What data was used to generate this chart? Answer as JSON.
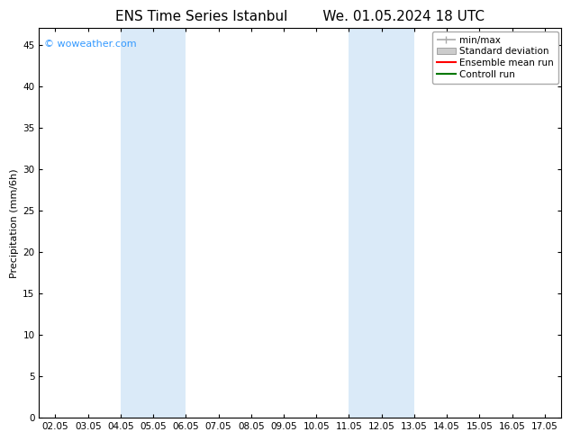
{
  "title_left": "ENS Time Series Istanbul",
  "title_right": "We. 01.05.2024 18 UTC",
  "ylabel": "Precipitation (mm/6h)",
  "ylim": [
    0,
    47
  ],
  "yticks": [
    0,
    5,
    10,
    15,
    20,
    25,
    30,
    35,
    40,
    45
  ],
  "xtick_labels": [
    "02.05",
    "03.05",
    "04.05",
    "05.05",
    "06.05",
    "07.05",
    "08.05",
    "09.05",
    "10.05",
    "11.05",
    "12.05",
    "13.05",
    "14.05",
    "15.05",
    "16.05",
    "17.05"
  ],
  "shaded_regions": [
    {
      "x0_label": "04.05",
      "x1_label": "06.05"
    },
    {
      "x0_label": "11.05",
      "x1_label": "13.05"
    }
  ],
  "shade_color": "#daeaf8",
  "watermark": "© woweather.com",
  "watermark_color": "#3399ff",
  "legend_items": [
    {
      "label": "min/max",
      "color": "#aaaaaa",
      "lw": 1.2
    },
    {
      "label": "Standard deviation",
      "color": "#cccccc",
      "lw": 6
    },
    {
      "label": "Ensemble mean run",
      "color": "#ff0000",
      "lw": 1.5
    },
    {
      "label": "Controll run",
      "color": "#007700",
      "lw": 1.5
    }
  ],
  "background_color": "#ffffff",
  "plot_bg_color": "#ffffff",
  "title_fontsize": 11,
  "axis_label_fontsize": 8,
  "tick_fontsize": 7.5,
  "watermark_fontsize": 8,
  "legend_fontsize": 7.5
}
